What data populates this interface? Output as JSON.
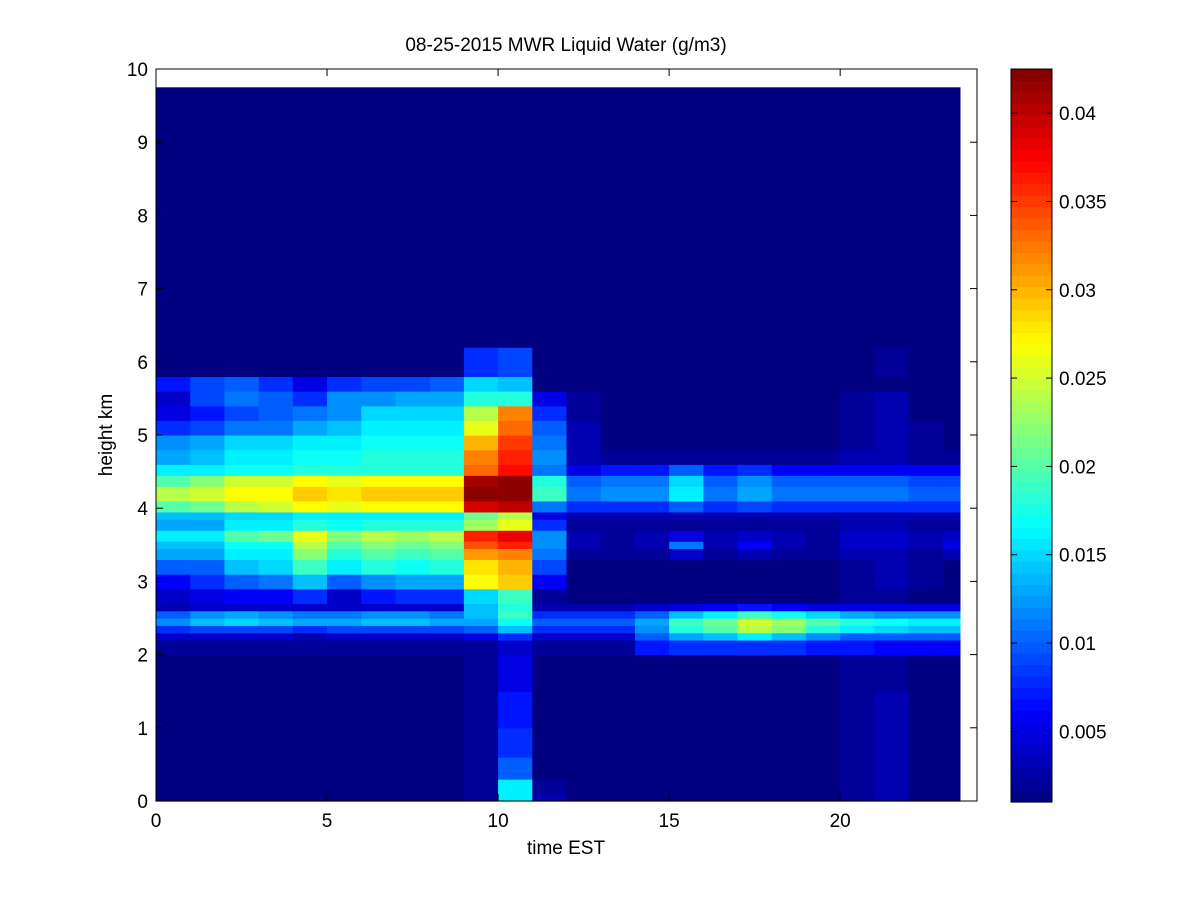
{
  "chart_data": {
    "type": "heatmap",
    "title": "08-25-2015 MWR Liquid Water (g/m3)",
    "xlabel": "time EST",
    "ylabel": "height km",
    "xlim": [
      0,
      24
    ],
    "ylim": [
      0,
      10
    ],
    "x_ticks": [
      0,
      5,
      10,
      15,
      20
    ],
    "y_ticks": [
      0,
      1,
      2,
      3,
      4,
      5,
      6,
      7,
      8,
      9,
      10
    ],
    "grid": false,
    "colormap": "jet",
    "colorbar": {
      "min": 0.001,
      "max": 0.0425,
      "ticks": [
        0.005,
        0.01,
        0.015,
        0.02,
        0.025,
        0.03,
        0.035,
        0.04
      ],
      "tick_labels": [
        "0.005",
        "0.01",
        "0.015",
        "0.02",
        "0.025",
        "0.03",
        "0.035",
        "0.04"
      ]
    },
    "time_bins": [
      0.0,
      1.0,
      2.0,
      3.0,
      4.0,
      5.0,
      6.0,
      7.0,
      8.0,
      9.0,
      10.0,
      11.0,
      12.0,
      13.0,
      14.0,
      15.0,
      16.0,
      17.0,
      18.0,
      19.0,
      20.0,
      21.0,
      22.0,
      23.0,
      23.5
    ],
    "height_bins": [
      0.0,
      0.1,
      0.3,
      0.6,
      1.0,
      1.5,
      2.0,
      2.2,
      2.3,
      2.4,
      2.5,
      2.6,
      2.7,
      2.9,
      3.1,
      3.3,
      3.45,
      3.55,
      3.7,
      3.85,
      3.95,
      4.1,
      4.3,
      4.45,
      4.6,
      4.8,
      5.0,
      5.2,
      5.4,
      5.6,
      5.8,
      6.2,
      9.75
    ],
    "values": [
      [
        0.001,
        0.001,
        0.001,
        0.001,
        0.001,
        0.001,
        0.001,
        0.001,
        0.001,
        0.002,
        0.016,
        0.003,
        0.001,
        0.001,
        0.001,
        0.001,
        0.001,
        0.001,
        0.001,
        0.001,
        0.002,
        0.003,
        0.001,
        0.001
      ],
      [
        0.001,
        0.001,
        0.001,
        0.001,
        0.001,
        0.001,
        0.001,
        0.001,
        0.001,
        0.002,
        0.016,
        0.002,
        0.001,
        0.001,
        0.001,
        0.001,
        0.001,
        0.001,
        0.001,
        0.001,
        0.002,
        0.003,
        0.001,
        0.001
      ],
      [
        0.001,
        0.001,
        0.001,
        0.001,
        0.001,
        0.001,
        0.001,
        0.001,
        0.001,
        0.002,
        0.01,
        0.001,
        0.001,
        0.001,
        0.001,
        0.001,
        0.001,
        0.001,
        0.001,
        0.001,
        0.002,
        0.003,
        0.001,
        0.001
      ],
      [
        0.001,
        0.001,
        0.001,
        0.001,
        0.001,
        0.001,
        0.001,
        0.001,
        0.001,
        0.002,
        0.008,
        0.001,
        0.001,
        0.001,
        0.001,
        0.001,
        0.001,
        0.001,
        0.001,
        0.001,
        0.002,
        0.003,
        0.001,
        0.001
      ],
      [
        0.001,
        0.001,
        0.001,
        0.001,
        0.001,
        0.001,
        0.001,
        0.001,
        0.001,
        0.002,
        0.007,
        0.001,
        0.001,
        0.001,
        0.001,
        0.001,
        0.001,
        0.001,
        0.001,
        0.001,
        0.002,
        0.003,
        0.001,
        0.001
      ],
      [
        0.001,
        0.001,
        0.001,
        0.001,
        0.001,
        0.001,
        0.001,
        0.001,
        0.001,
        0.002,
        0.005,
        0.001,
        0.001,
        0.001,
        0.001,
        0.001,
        0.001,
        0.001,
        0.001,
        0.001,
        0.002,
        0.002,
        0.001,
        0.001
      ],
      [
        0.002,
        0.002,
        0.002,
        0.002,
        0.002,
        0.002,
        0.002,
        0.002,
        0.002,
        0.002,
        0.004,
        0.002,
        0.002,
        0.002,
        0.007,
        0.008,
        0.008,
        0.008,
        0.008,
        0.007,
        0.007,
        0.006,
        0.006,
        0.006
      ],
      [
        0.004,
        0.004,
        0.004,
        0.004,
        0.003,
        0.004,
        0.004,
        0.004,
        0.004,
        0.005,
        0.008,
        0.004,
        0.004,
        0.004,
        0.01,
        0.013,
        0.014,
        0.016,
        0.014,
        0.012,
        0.01,
        0.01,
        0.01,
        0.01
      ],
      [
        0.008,
        0.009,
        0.009,
        0.009,
        0.008,
        0.009,
        0.009,
        0.009,
        0.009,
        0.01,
        0.014,
        0.008,
        0.008,
        0.008,
        0.012,
        0.018,
        0.02,
        0.024,
        0.022,
        0.018,
        0.016,
        0.015,
        0.014,
        0.014
      ],
      [
        0.012,
        0.014,
        0.015,
        0.014,
        0.013,
        0.013,
        0.014,
        0.014,
        0.013,
        0.013,
        0.017,
        0.01,
        0.01,
        0.01,
        0.013,
        0.019,
        0.021,
        0.025,
        0.023,
        0.02,
        0.018,
        0.017,
        0.016,
        0.016
      ],
      [
        0.01,
        0.012,
        0.013,
        0.012,
        0.011,
        0.011,
        0.012,
        0.012,
        0.011,
        0.014,
        0.019,
        0.008,
        0.008,
        0.008,
        0.01,
        0.014,
        0.016,
        0.019,
        0.017,
        0.015,
        0.013,
        0.012,
        0.012,
        0.012
      ],
      [
        0.003,
        0.004,
        0.004,
        0.004,
        0.004,
        0.004,
        0.004,
        0.004,
        0.004,
        0.014,
        0.018,
        0.003,
        0.003,
        0.003,
        0.004,
        0.005,
        0.006,
        0.007,
        0.006,
        0.005,
        0.005,
        0.005,
        0.005,
        0.005
      ],
      [
        0.004,
        0.005,
        0.006,
        0.006,
        0.008,
        0.004,
        0.007,
        0.008,
        0.008,
        0.015,
        0.019,
        0.002,
        0.001,
        0.001,
        0.001,
        0.001,
        0.001,
        0.001,
        0.001,
        0.001,
        0.002,
        0.002,
        0.001,
        0.001
      ],
      [
        0.006,
        0.008,
        0.01,
        0.011,
        0.014,
        0.01,
        0.012,
        0.013,
        0.013,
        0.027,
        0.029,
        0.006,
        0.001,
        0.001,
        0.001,
        0.001,
        0.001,
        0.001,
        0.001,
        0.001,
        0.002,
        0.003,
        0.002,
        0.001
      ],
      [
        0.01,
        0.01,
        0.014,
        0.015,
        0.019,
        0.016,
        0.018,
        0.017,
        0.018,
        0.028,
        0.03,
        0.009,
        0.001,
        0.001,
        0.001,
        0.001,
        0.001,
        0.001,
        0.001,
        0.001,
        0.002,
        0.003,
        0.002,
        0.001
      ],
      [
        0.013,
        0.013,
        0.016,
        0.016,
        0.022,
        0.018,
        0.02,
        0.019,
        0.02,
        0.031,
        0.032,
        0.011,
        0.002,
        0.002,
        0.002,
        0.004,
        0.002,
        0.003,
        0.002,
        0.002,
        0.003,
        0.003,
        0.002,
        0.003
      ],
      [
        0.014,
        0.014,
        0.017,
        0.017,
        0.024,
        0.02,
        0.022,
        0.021,
        0.022,
        0.034,
        0.036,
        0.012,
        0.003,
        0.002,
        0.003,
        0.011,
        0.003,
        0.006,
        0.003,
        0.002,
        0.004,
        0.004,
        0.003,
        0.005
      ],
      [
        0.016,
        0.016,
        0.02,
        0.021,
        0.026,
        0.022,
        0.024,
        0.023,
        0.024,
        0.036,
        0.038,
        0.012,
        0.003,
        0.002,
        0.003,
        0.005,
        0.003,
        0.004,
        0.003,
        0.002,
        0.004,
        0.004,
        0.003,
        0.004
      ],
      [
        0.013,
        0.013,
        0.016,
        0.016,
        0.018,
        0.017,
        0.018,
        0.018,
        0.018,
        0.023,
        0.026,
        0.008,
        0.002,
        0.002,
        0.002,
        0.002,
        0.002,
        0.002,
        0.002,
        0.002,
        0.003,
        0.003,
        0.002,
        0.002
      ],
      [
        0.014,
        0.014,
        0.015,
        0.015,
        0.016,
        0.016,
        0.016,
        0.016,
        0.016,
        0.021,
        0.024,
        0.005,
        0.003,
        0.003,
        0.003,
        0.003,
        0.003,
        0.003,
        0.003,
        0.003,
        0.003,
        0.003,
        0.003,
        0.003
      ],
      [
        0.02,
        0.021,
        0.024,
        0.025,
        0.027,
        0.026,
        0.027,
        0.027,
        0.027,
        0.039,
        0.04,
        0.011,
        0.008,
        0.008,
        0.008,
        0.01,
        0.008,
        0.009,
        0.008,
        0.008,
        0.008,
        0.008,
        0.008,
        0.008
      ],
      [
        0.024,
        0.025,
        0.027,
        0.027,
        0.029,
        0.028,
        0.029,
        0.029,
        0.029,
        0.042,
        0.042,
        0.019,
        0.011,
        0.012,
        0.012,
        0.016,
        0.011,
        0.013,
        0.011,
        0.011,
        0.011,
        0.011,
        0.01,
        0.01
      ],
      [
        0.02,
        0.022,
        0.025,
        0.025,
        0.027,
        0.026,
        0.027,
        0.027,
        0.027,
        0.041,
        0.042,
        0.018,
        0.01,
        0.011,
        0.011,
        0.015,
        0.01,
        0.012,
        0.01,
        0.01,
        0.01,
        0.01,
        0.009,
        0.009
      ],
      [
        0.016,
        0.016,
        0.017,
        0.017,
        0.018,
        0.018,
        0.018,
        0.018,
        0.018,
        0.033,
        0.037,
        0.011,
        0.005,
        0.007,
        0.007,
        0.01,
        0.007,
        0.008,
        0.006,
        0.006,
        0.006,
        0.006,
        0.006,
        0.006
      ],
      [
        0.013,
        0.014,
        0.016,
        0.016,
        0.017,
        0.017,
        0.018,
        0.018,
        0.018,
        0.032,
        0.036,
        0.012,
        0.003,
        0.002,
        0.002,
        0.002,
        0.002,
        0.002,
        0.002,
        0.002,
        0.003,
        0.003,
        0.002,
        0.002
      ],
      [
        0.012,
        0.013,
        0.015,
        0.015,
        0.016,
        0.016,
        0.017,
        0.017,
        0.017,
        0.03,
        0.035,
        0.011,
        0.003,
        0.001,
        0.001,
        0.001,
        0.001,
        0.001,
        0.001,
        0.001,
        0.002,
        0.003,
        0.002,
        0.001
      ],
      [
        0.008,
        0.009,
        0.011,
        0.011,
        0.013,
        0.014,
        0.016,
        0.016,
        0.016,
        0.026,
        0.033,
        0.01,
        0.003,
        0.001,
        0.001,
        0.001,
        0.001,
        0.001,
        0.001,
        0.001,
        0.002,
        0.003,
        0.002,
        0.001
      ],
      [
        0.005,
        0.007,
        0.009,
        0.01,
        0.011,
        0.012,
        0.015,
        0.015,
        0.015,
        0.024,
        0.032,
        0.008,
        0.002,
        0.001,
        0.001,
        0.001,
        0.001,
        0.001,
        0.001,
        0.001,
        0.002,
        0.003,
        0.001,
        0.001
      ],
      [
        0.004,
        0.009,
        0.011,
        0.01,
        0.008,
        0.012,
        0.012,
        0.013,
        0.013,
        0.018,
        0.018,
        0.005,
        0.002,
        0.001,
        0.001,
        0.001,
        0.001,
        0.001,
        0.001,
        0.001,
        0.002,
        0.003,
        0.001,
        0.001
      ],
      [
        0.007,
        0.009,
        0.01,
        0.008,
        0.005,
        0.008,
        0.009,
        0.009,
        0.01,
        0.015,
        0.014,
        0.001,
        0.001,
        0.001,
        0.001,
        0.001,
        0.001,
        0.001,
        0.001,
        0.001,
        0.001,
        0.001,
        0.001,
        0.001
      ],
      [
        0.001,
        0.001,
        0.001,
        0.001,
        0.001,
        0.001,
        0.001,
        0.001,
        0.001,
        0.008,
        0.009,
        0.001,
        0.001,
        0.001,
        0.001,
        0.001,
        0.001,
        0.001,
        0.001,
        0.001,
        0.001,
        0.002,
        0.001,
        0.001
      ],
      [
        0.001,
        0.001,
        0.001,
        0.001,
        0.001,
        0.001,
        0.001,
        0.001,
        0.001,
        0.001,
        0.001,
        0.001,
        0.001,
        0.001,
        0.001,
        0.001,
        0.001,
        0.001,
        0.001,
        0.001,
        0.001,
        0.001,
        0.001,
        0.001
      ]
    ]
  }
}
